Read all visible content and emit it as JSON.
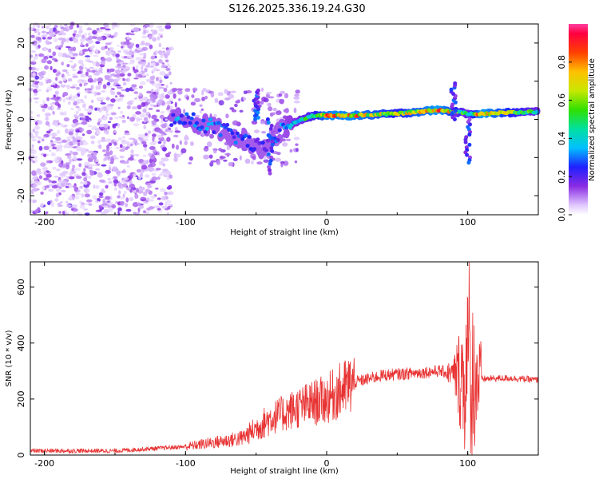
{
  "title": "S126.2025.336.19.24.G30",
  "colors": {
    "snr_line": "#e83232",
    "spectrogram_low": "#d8b8f8",
    "spectrogram_mid": "#5010f0"
  },
  "chart_data": [
    {
      "type": "heatmap",
      "name": "spectrogram",
      "xlabel": "Height of straight line (km)",
      "ylabel": "Frequency (Hz)",
      "xlim": [
        -210,
        150
      ],
      "ylim": [
        -25,
        25
      ],
      "xticks": [
        -200,
        -100,
        0,
        100
      ],
      "yticks": [
        -20,
        -10,
        0,
        10,
        20
      ],
      "colorbar": {
        "label": "Normalized spectral amplitude",
        "range": [
          0.0,
          1.0
        ],
        "ticks": [
          0.0,
          0.2,
          0.4,
          0.6,
          0.8
        ],
        "tick_labels": [
          "0.0",
          "0.2",
          "0.4",
          "0.6",
          "0.8"
        ]
      },
      "ridge": [
        {
          "x": -100,
          "freq": 0,
          "amp": 0.35
        },
        {
          "x": -80,
          "freq": -2,
          "amp": 0.35
        },
        {
          "x": -60,
          "freq": -5,
          "amp": 0.3
        },
        {
          "x": -45,
          "freq": -8,
          "amp": 0.25
        },
        {
          "x": -30,
          "freq": -2,
          "amp": 0.35
        },
        {
          "x": -10,
          "freq": 1,
          "amp": 0.6
        },
        {
          "x": 0,
          "freq": 1,
          "amp": 0.9
        },
        {
          "x": 20,
          "freq": 1,
          "amp": 0.9
        },
        {
          "x": 50,
          "freq": 1.5,
          "amp": 0.7
        },
        {
          "x": 80,
          "freq": 2.5,
          "amp": 0.95
        },
        {
          "x": 100,
          "freq": 1.5,
          "amp": 0.5
        },
        {
          "x": 110,
          "freq": 1.5,
          "amp": 0.95
        },
        {
          "x": 150,
          "freq": 2,
          "amp": 0.5
        }
      ]
    },
    {
      "type": "line",
      "name": "snr",
      "xlabel": "Height of straight line (km)",
      "ylabel": "SNR (10 * v/v)",
      "xlim": [
        -210,
        150
      ],
      "ylim": [
        0,
        690
      ],
      "xticks": [
        -200,
        -100,
        0,
        100
      ],
      "yticks": [
        0,
        200,
        400,
        600
      ],
      "envelope": [
        {
          "x": -210,
          "y": 15
        },
        {
          "x": -150,
          "y": 15
        },
        {
          "x": -100,
          "y": 30
        },
        {
          "x": -80,
          "y": 45
        },
        {
          "x": -60,
          "y": 60
        },
        {
          "x": -40,
          "y": 130
        },
        {
          "x": -20,
          "y": 170
        },
        {
          "x": 0,
          "y": 200
        },
        {
          "x": 20,
          "y": 260
        },
        {
          "x": 40,
          "y": 285
        },
        {
          "x": 60,
          "y": 292
        },
        {
          "x": 80,
          "y": 300
        },
        {
          "x": 90,
          "y": 290
        },
        {
          "x": 100,
          "y": 270
        },
        {
          "x": 110,
          "y": 272
        },
        {
          "x": 130,
          "y": 275
        },
        {
          "x": 150,
          "y": 268
        }
      ],
      "peak": {
        "x": 101,
        "y": 690
      }
    }
  ]
}
